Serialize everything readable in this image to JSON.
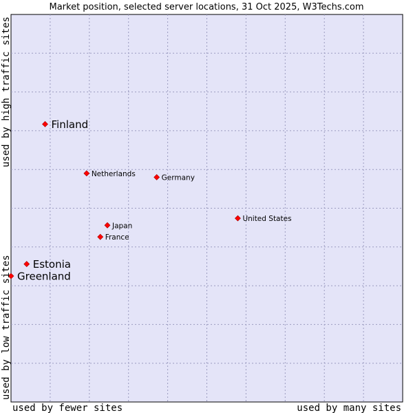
{
  "chart_data": {
    "type": "scatter",
    "title": "Market position, selected server locations, 31 Oct 2025, W3Techs.com",
    "xlabel_left": "used by fewer sites",
    "xlabel_right": "used by many sites",
    "ylabel_bottom": "used by low traffic sites",
    "ylabel_top": "used by high traffic sites",
    "xlim": [
      0,
      10
    ],
    "ylim": [
      0,
      10
    ],
    "grid": true,
    "colors": {
      "background": "#e4e4f8",
      "grid": "#9a9abf",
      "marker": "#ff0000"
    },
    "points": [
      {
        "label": "Finland",
        "x": 0.87,
        "y": 7.17,
        "emphasis": true
      },
      {
        "label": "Netherlands",
        "x": 1.93,
        "y": 5.9,
        "emphasis": false
      },
      {
        "label": "Germany",
        "x": 3.72,
        "y": 5.8,
        "emphasis": false
      },
      {
        "label": "United States",
        "x": 5.79,
        "y": 4.74,
        "emphasis": false
      },
      {
        "label": "Japan",
        "x": 2.46,
        "y": 4.56,
        "emphasis": false
      },
      {
        "label": "France",
        "x": 2.28,
        "y": 4.26,
        "emphasis": false
      },
      {
        "label": "Estonia",
        "x": 0.4,
        "y": 3.56,
        "emphasis": true
      },
      {
        "label": "Greenland",
        "x": 0.0,
        "y": 3.25,
        "emphasis": true
      }
    ]
  }
}
